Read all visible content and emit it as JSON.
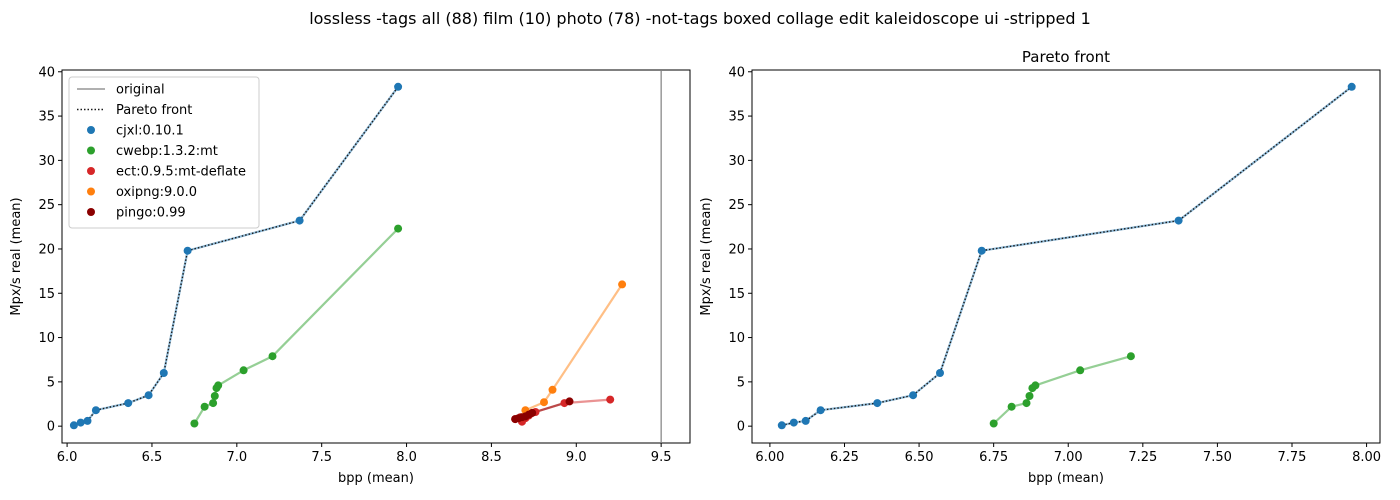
{
  "figure": {
    "suptitle": "lossless -tags all (88) film (10) photo (78) -not-tags boxed collage edit kaleidoscope ui -stripped 1"
  },
  "colors": {
    "cjxl:0.10.1": "#1f77b4",
    "cwebp:1.3.2:mt": "#2ca02c",
    "ect:0.9.5:mt-deflate": "#d62728",
    "oxipng:9.0.0": "#ff7f0e",
    "pingo:0.99": "#8b0000",
    "original": "#808080",
    "pareto": "#1a1a1a"
  },
  "chart_data": [
    {
      "type": "scatter",
      "title": "",
      "xlabel": "bpp (mean)",
      "ylabel": "Mpx/s real (mean)",
      "xlim": [
        5.97,
        9.67
      ],
      "ylim": [
        -1.9,
        40.2
      ],
      "xticks": [
        "6.0",
        "6.5",
        "7.0",
        "7.5",
        "8.0",
        "8.5",
        "9.0",
        "9.5"
      ],
      "yticks": [
        "0",
        "5",
        "10",
        "15",
        "20",
        "25",
        "30",
        "35",
        "40"
      ],
      "legend_position": "top-left",
      "legend": [
        "original",
        "Pareto front",
        "cjxl:0.10.1",
        "cwebp:1.3.2:mt",
        "ect:0.9.5:mt-deflate",
        "oxipng:9.0.0",
        "pingo:0.99"
      ],
      "original_x": 9.5,
      "series": [
        {
          "name": "cjxl:0.10.1",
          "x": [
            6.04,
            6.08,
            6.12,
            6.17,
            6.36,
            6.48,
            6.57,
            6.71,
            7.37,
            7.95
          ],
          "y": [
            0.1,
            0.4,
            0.6,
            1.8,
            2.6,
            3.5,
            6.0,
            19.8,
            23.2,
            38.3
          ]
        },
        {
          "name": "cwebp:1.3.2:mt",
          "x": [
            6.75,
            6.81,
            6.86,
            6.87,
            6.88,
            6.89,
            7.04,
            7.21,
            7.95
          ],
          "y": [
            0.3,
            2.2,
            2.6,
            3.4,
            4.3,
            4.6,
            6.3,
            7.9,
            22.3
          ]
        },
        {
          "name": "ect:0.9.5:mt-deflate",
          "x": [
            8.64,
            8.66,
            8.67,
            8.68,
            8.7,
            8.72,
            8.73,
            8.76,
            8.93,
            9.2
          ],
          "y": [
            0.8,
            0.9,
            1.0,
            0.5,
            0.9,
            1.2,
            1.4,
            1.6,
            2.6,
            3.0
          ]
        },
        {
          "name": "oxipng:9.0.0",
          "x": [
            8.68,
            8.7,
            8.81,
            8.86,
            9.27
          ],
          "y": [
            1.0,
            1.8,
            2.7,
            4.1,
            16.0
          ]
        },
        {
          "name": "pingo:0.99",
          "x": [
            8.64,
            8.66,
            8.68,
            8.7,
            8.72,
            8.74,
            8.96
          ],
          "y": [
            0.8,
            0.9,
            1.0,
            1.1,
            1.3,
            1.5,
            2.8
          ]
        }
      ],
      "pareto_front": {
        "x": [
          6.04,
          6.08,
          6.12,
          6.17,
          6.36,
          6.48,
          6.57,
          6.71,
          7.37,
          7.95
        ],
        "y": [
          0.1,
          0.4,
          0.6,
          1.8,
          2.6,
          3.5,
          6.0,
          19.8,
          23.2,
          38.3
        ]
      }
    },
    {
      "type": "scatter",
      "title": "Pareto front",
      "xlabel": "bpp (mean)",
      "ylabel": "Mpx/s real (mean)",
      "xlim": [
        5.94,
        8.045
      ],
      "ylim": [
        -1.9,
        40.2
      ],
      "xticks": [
        "6.00",
        "6.25",
        "6.50",
        "6.75",
        "7.00",
        "7.25",
        "7.50",
        "7.75",
        "8.00"
      ],
      "yticks": [
        "0",
        "5",
        "10",
        "15",
        "20",
        "25",
        "30",
        "35",
        "40"
      ],
      "series": [
        {
          "name": "cjxl:0.10.1",
          "x": [
            6.04,
            6.08,
            6.12,
            6.17,
            6.36,
            6.48,
            6.57,
            6.71,
            7.37,
            7.95
          ],
          "y": [
            0.1,
            0.4,
            0.6,
            1.8,
            2.6,
            3.5,
            6.0,
            19.8,
            23.2,
            38.3
          ]
        },
        {
          "name": "cwebp:1.3.2:mt",
          "x": [
            6.75,
            6.81,
            6.86,
            6.87,
            6.88,
            6.89,
            7.04,
            7.21
          ],
          "y": [
            0.3,
            2.2,
            2.6,
            3.4,
            4.3,
            4.6,
            6.3,
            7.9
          ]
        }
      ],
      "pareto_front": {
        "x": [
          6.04,
          6.08,
          6.12,
          6.17,
          6.36,
          6.48,
          6.57,
          6.71,
          7.37,
          7.95
        ],
        "y": [
          0.1,
          0.4,
          0.6,
          1.8,
          2.6,
          3.5,
          6.0,
          19.8,
          23.2,
          38.3
        ]
      }
    }
  ]
}
